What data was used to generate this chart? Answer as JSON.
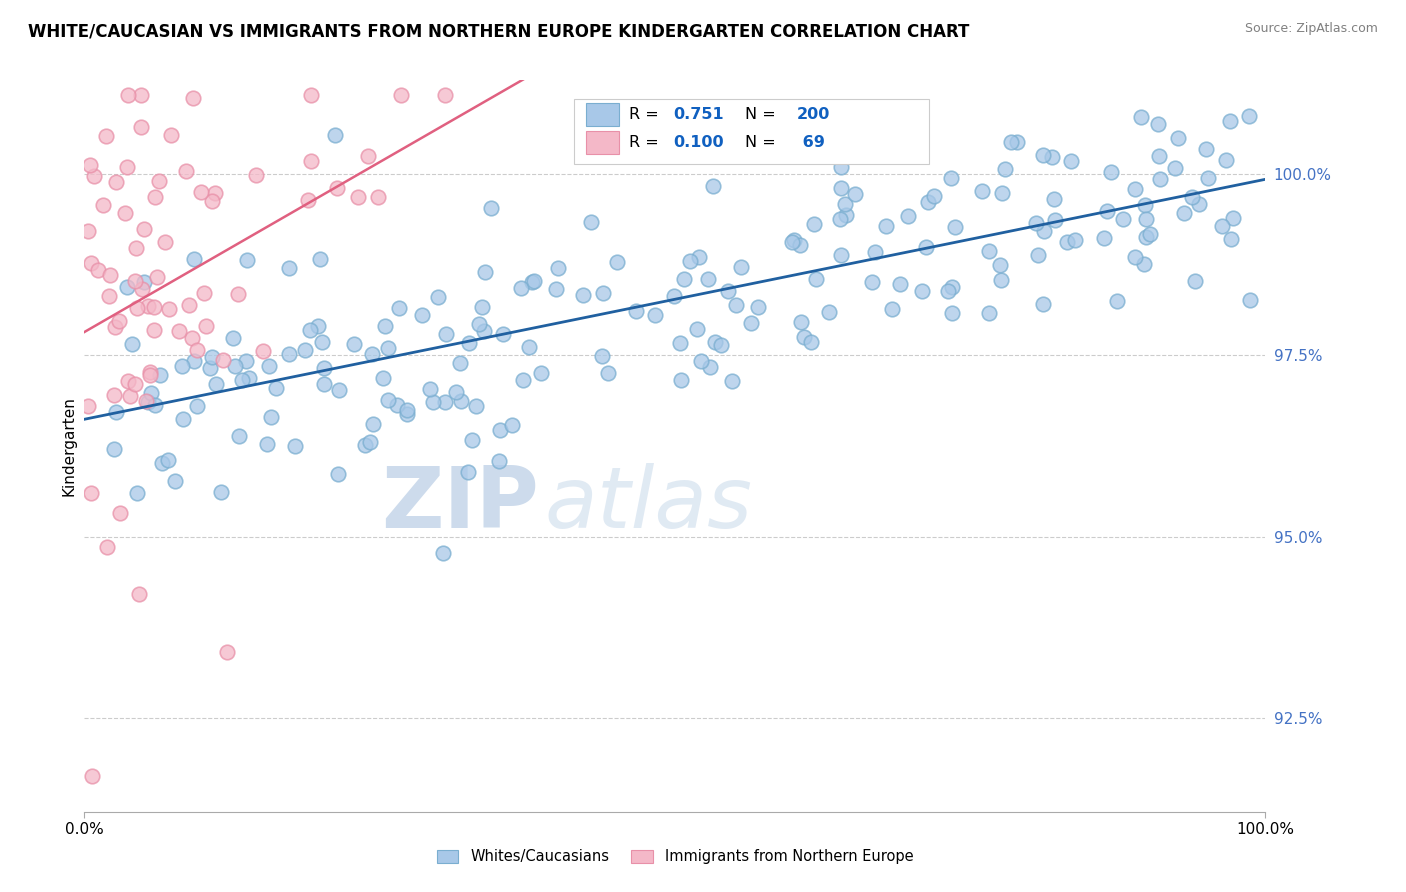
{
  "title": "WHITE/CAUCASIAN VS IMMIGRANTS FROM NORTHERN EUROPE KINDERGARTEN CORRELATION CHART",
  "source": "Source: ZipAtlas.com",
  "ylabel": "Kindergarten",
  "xmin": 0.0,
  "xmax": 100.0,
  "ymin": 91.2,
  "ymax": 101.3,
  "blue_R": 0.751,
  "blue_N": 200,
  "pink_R": 0.1,
  "pink_N": 69,
  "blue_color": "#a8c8e8",
  "pink_color": "#f4b8c8",
  "blue_edge_color": "#7aaed0",
  "pink_edge_color": "#e890a8",
  "blue_line_color": "#2060a0",
  "pink_line_color": "#e06080",
  "right_yticks": [
    92.5,
    95.0,
    97.5,
    100.0
  ],
  "legend_label_blue": "Whites/Caucasians",
  "legend_label_pink": "Immigrants from Northern Europe",
  "title_fontsize": 12,
  "axis_label_fontsize": 10,
  "tick_fontsize": 10,
  "blue_seed": 42,
  "pink_seed": 7
}
